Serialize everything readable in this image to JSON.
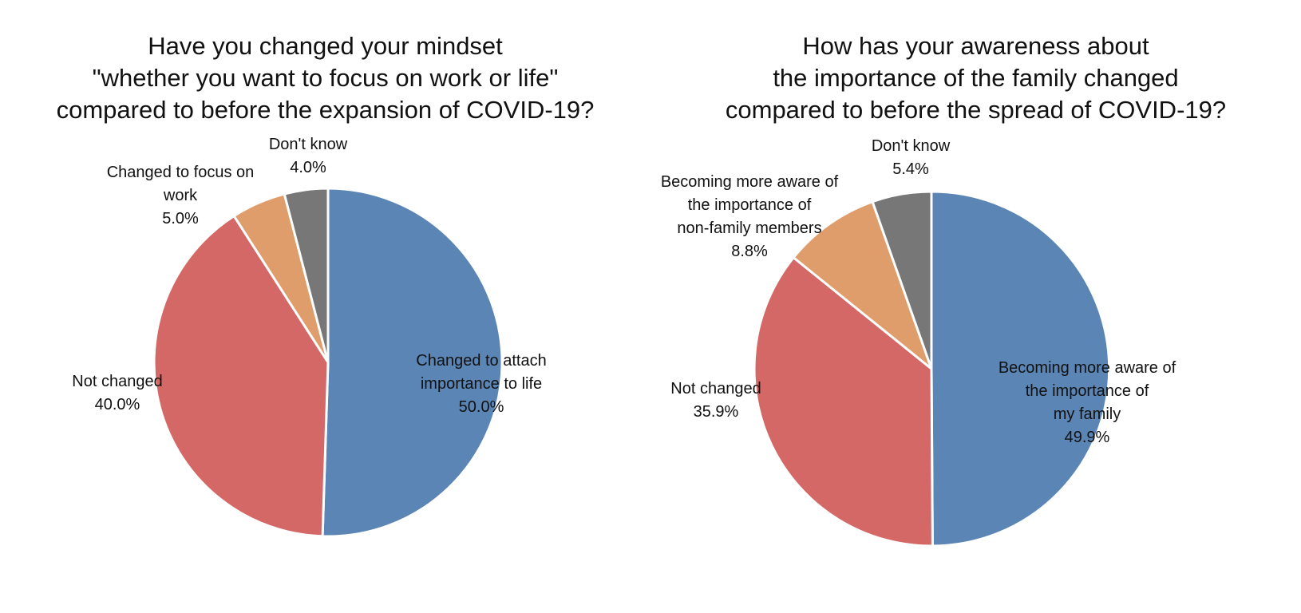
{
  "chart_data": [
    {
      "type": "pie",
      "title": "Have you changed your mindset\n\"whether you want to focus on work or life\"\ncompared to before the expansion of COVID-19?",
      "slices": [
        {
          "label": "Changed to attach\nimportance to life",
          "value": 50.0,
          "value_label": "50.0%",
          "color": "#5b85b5"
        },
        {
          "label": "Not changed",
          "value": 40.0,
          "value_label": "40.0%",
          "color": "#d36866"
        },
        {
          "label": "Changed to focus on\nwork",
          "value": 5.0,
          "value_label": "5.0%",
          "color": "#df9d6c"
        },
        {
          "label": "Don't know",
          "value": 4.0,
          "value_label": "4.0%",
          "color": "#777777"
        }
      ]
    },
    {
      "type": "pie",
      "title": "How has your awareness about\nthe importance of the family changed\ncompared to before the spread of COVID-19?",
      "slices": [
        {
          "label": "Becoming more aware of\nthe importance of\nmy family",
          "value": 49.9,
          "value_label": "49.9%",
          "color": "#5b85b5"
        },
        {
          "label": "Not changed",
          "value": 35.9,
          "value_label": "35.9%",
          "color": "#d36866"
        },
        {
          "label": "Becoming more aware of\nthe importance of\nnon-family members",
          "value": 8.8,
          "value_label": "8.8%",
          "color": "#df9d6c"
        },
        {
          "label": "Don't know",
          "value": 5.4,
          "value_label": "5.4%",
          "color": "#777777"
        }
      ]
    }
  ]
}
